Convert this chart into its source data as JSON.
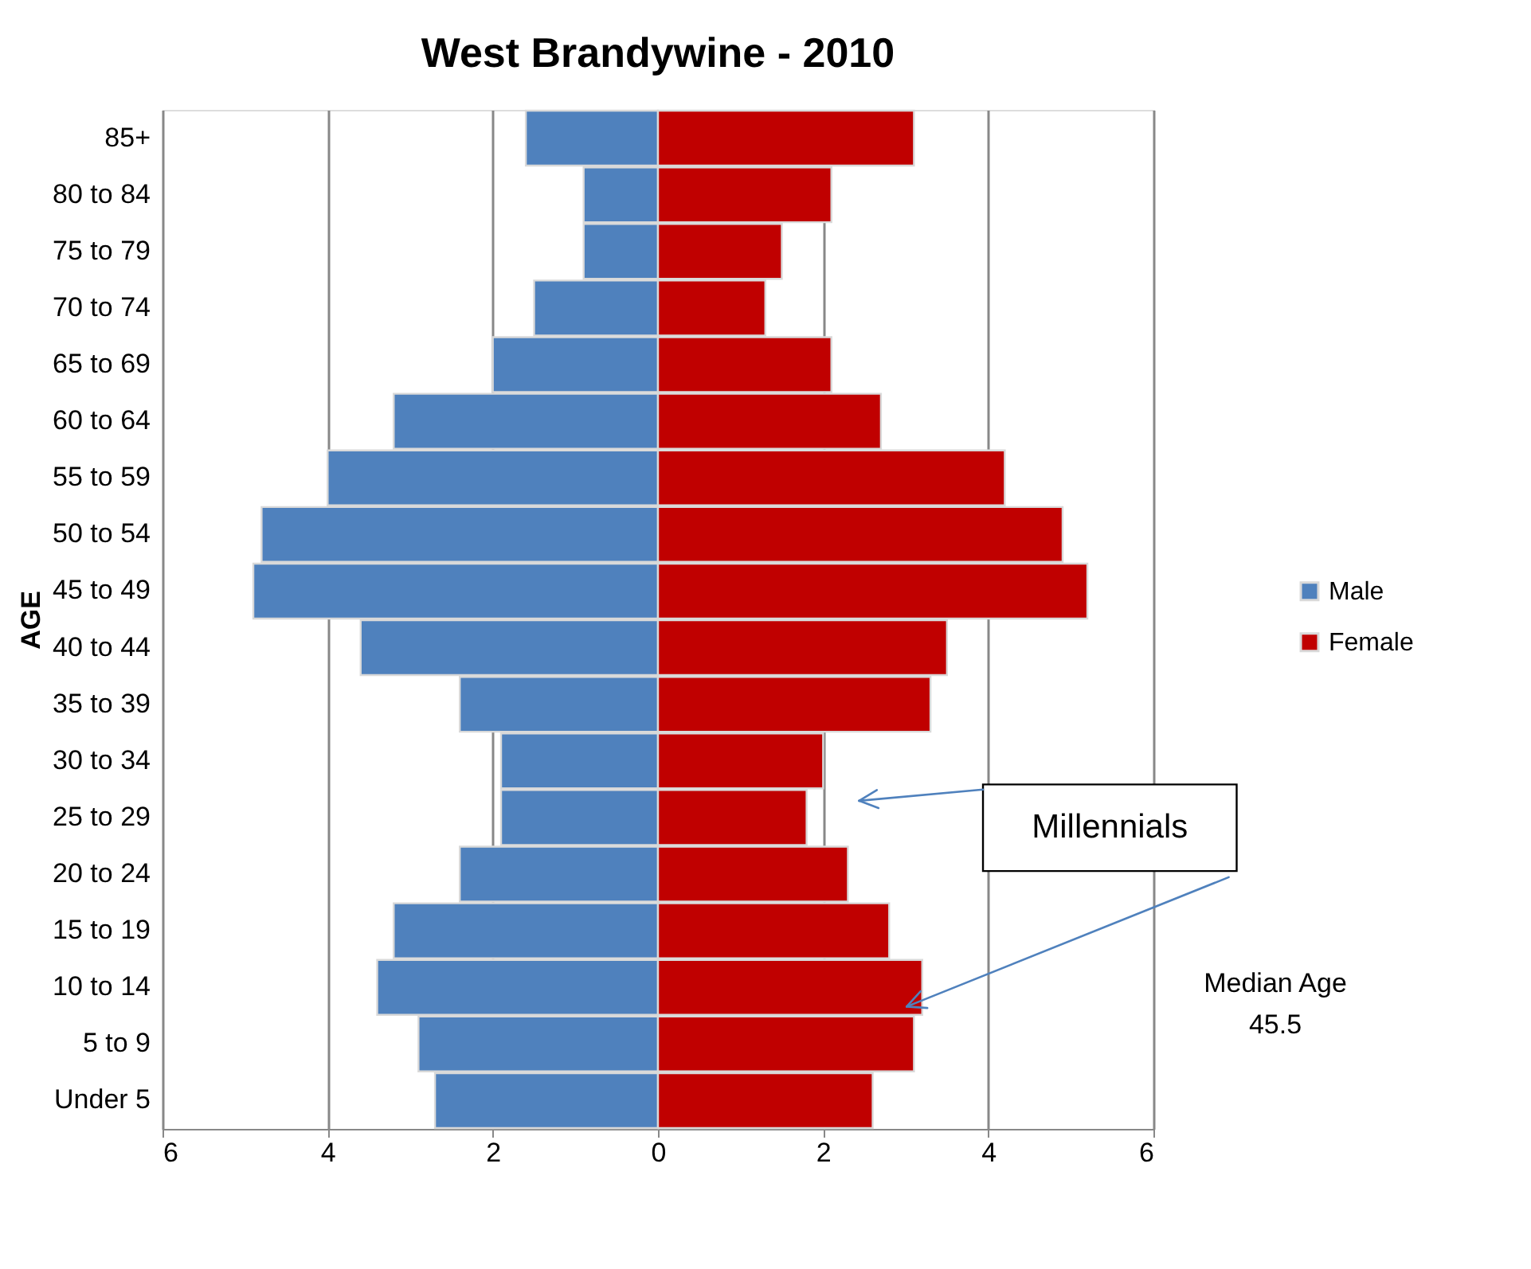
{
  "chart_data": {
    "type": "bar",
    "orientation": "horizontal",
    "stacked": true,
    "title": "West Brandywine - 2010",
    "ylabel": "AGE",
    "categories": [
      "85+",
      "80 to 84",
      "75 to 79",
      "70 to 74",
      "65 to 69",
      "60 to 64",
      "55 to 59",
      "50 to 54",
      "45 to 49",
      "40 to 44",
      "35 to 39",
      "30 to 34",
      "25 to 29",
      "20 to 24",
      "15 to 19",
      "10 to 14",
      "5 to 9",
      "Under 5"
    ],
    "series": [
      {
        "name": "Male",
        "color": "#4f81bd",
        "values": [
          -1.6,
          -0.9,
          -0.9,
          -1.5,
          -2.0,
          -3.2,
          -4.0,
          -4.8,
          -4.9,
          -3.6,
          -2.4,
          -1.9,
          -1.9,
          -2.4,
          -3.2,
          -3.4,
          -2.9,
          -2.7
        ]
      },
      {
        "name": "Female",
        "color": "#c00000",
        "values": [
          3.1,
          2.1,
          1.5,
          1.3,
          2.1,
          2.7,
          4.2,
          4.9,
          5.2,
          3.5,
          3.3,
          2.0,
          1.8,
          2.3,
          2.8,
          3.2,
          3.1,
          2.6
        ]
      }
    ],
    "xlim": [
      -6,
      6
    ],
    "xticks": [
      {
        "value": -6,
        "label": "6"
      },
      {
        "value": -4,
        "label": "4"
      },
      {
        "value": -2,
        "label": "2"
      },
      0,
      2,
      4,
      6
    ],
    "grid": "x",
    "legend": "right",
    "annotations": [
      "Millennials",
      "Median Age\n45.5"
    ]
  }
}
